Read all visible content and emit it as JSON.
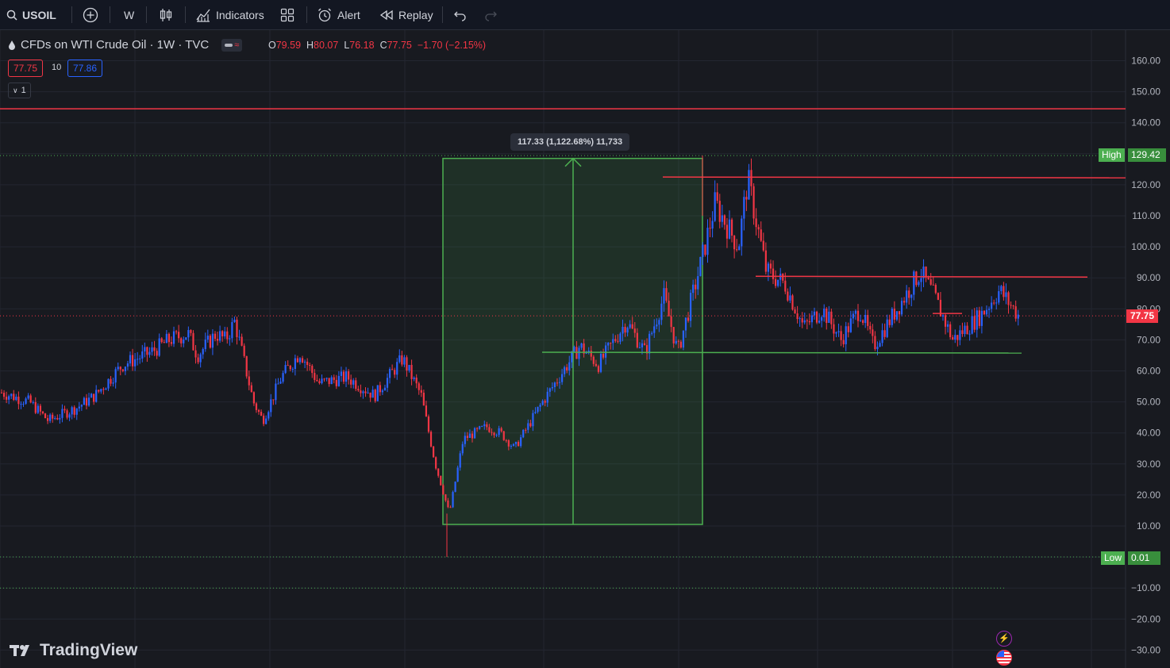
{
  "toolbar": {
    "symbol": "USOIL",
    "interval": "W",
    "indicators_label": "Indicators",
    "alert_label": "Alert",
    "replay_label": "Replay"
  },
  "legend": {
    "title": "CFDs on WTI Crude Oil · 1W · TVC",
    "open_key": "O",
    "open": "79.59",
    "high_key": "H",
    "high": "80.07",
    "low_key": "L",
    "low": "76.18",
    "close_key": "C",
    "close": "77.75",
    "change": "−1.70 (−2.15%)",
    "sell_price": "77.75",
    "spread": "10",
    "buy_price": "77.86",
    "collapse_count": "1"
  },
  "measure": {
    "label": "117.33 (1,122.68%) 11,733"
  },
  "price_axis": {
    "ticks": [
      "160.00",
      "150.00",
      "140.00",
      "120.00",
      "110.00",
      "100.00",
      "90.00",
      "80.00",
      "70.00",
      "60.00",
      "50.00",
      "40.00",
      "30.00",
      "20.00",
      "10.00",
      "−10.00",
      "−20.00",
      "−30.00"
    ],
    "current_price": "77.75",
    "high_label": "High",
    "high_value": "129.42",
    "low_label": "Low",
    "low_value": "0.01"
  },
  "brand": {
    "logo_text": "TradingView"
  },
  "colors": {
    "up": "#2962ff",
    "down": "#f23645",
    "level_red": "#f23645",
    "level_green": "#4caf50",
    "background": "#181a20"
  },
  "chart_data": {
    "type": "candlestick",
    "symbol": "USOIL",
    "interval": "1W",
    "ylim": [
      -30,
      165
    ],
    "close_path": [
      {
        "t": 0,
        "p": 53
      },
      {
        "t": 0.03,
        "p": 50
      },
      {
        "t": 0.05,
        "p": 44
      },
      {
        "t": 0.08,
        "p": 48
      },
      {
        "t": 0.1,
        "p": 52
      },
      {
        "t": 0.13,
        "p": 62
      },
      {
        "t": 0.16,
        "p": 66
      },
      {
        "t": 0.18,
        "p": 70
      },
      {
        "t": 0.2,
        "p": 72
      },
      {
        "t": 0.21,
        "p": 65
      },
      {
        "t": 0.23,
        "p": 72
      },
      {
        "t": 0.24,
        "p": 70
      },
      {
        "t": 0.25,
        "p": 76
      },
      {
        "t": 0.27,
        "p": 50
      },
      {
        "t": 0.28,
        "p": 44
      },
      {
        "t": 0.3,
        "p": 58
      },
      {
        "t": 0.32,
        "p": 66
      },
      {
        "t": 0.34,
        "p": 56
      },
      {
        "t": 0.37,
        "p": 58
      },
      {
        "t": 0.4,
        "p": 52
      },
      {
        "t": 0.43,
        "p": 64
      },
      {
        "t": 0.45,
        "p": 52
      },
      {
        "t": 0.465,
        "p": 30
      },
      {
        "t": 0.48,
        "p": 14
      },
      {
        "t": 0.495,
        "p": 38
      },
      {
        "t": 0.52,
        "p": 42
      },
      {
        "t": 0.535,
        "p": 40
      },
      {
        "t": 0.55,
        "p": 35
      },
      {
        "t": 0.58,
        "p": 50
      },
      {
        "t": 0.62,
        "p": 68
      },
      {
        "t": 0.64,
        "p": 62
      },
      {
        "t": 0.67,
        "p": 76
      },
      {
        "t": 0.69,
        "p": 66
      },
      {
        "t": 0.71,
        "p": 84
      },
      {
        "t": 0.725,
        "p": 66
      },
      {
        "t": 0.75,
        "p": 95
      },
      {
        "t": 0.765,
        "p": 114
      },
      {
        "t": 0.79,
        "p": 100
      },
      {
        "t": 0.8,
        "p": 122
      },
      {
        "t": 0.82,
        "p": 92
      },
      {
        "t": 0.84,
        "p": 88
      },
      {
        "t": 0.86,
        "p": 74
      },
      {
        "t": 0.88,
        "p": 80
      },
      {
        "t": 0.9,
        "p": 70
      },
      {
        "t": 0.92,
        "p": 80
      },
      {
        "t": 0.935,
        "p": 68
      },
      {
        "t": 0.96,
        "p": 80
      },
      {
        "t": 0.985,
        "p": 92
      },
      {
        "t": 1.0,
        "p": 84
      },
      {
        "t": 1.02,
        "p": 70
      },
      {
        "t": 1.05,
        "p": 78
      },
      {
        "t": 1.07,
        "p": 86
      },
      {
        "t": 1.09,
        "p": 78
      }
    ],
    "horizontal_levels": [
      {
        "price": 144.5,
        "color": "red",
        "extent": "full"
      },
      {
        "price": 122.5,
        "color": "red",
        "extent": "from 2022 high"
      },
      {
        "price": 90.5,
        "color": "red",
        "extent": "from 2022 high"
      },
      {
        "price": 66.0,
        "color": "green",
        "extent": "from 2021"
      }
    ],
    "measure_tool": {
      "from_price": 10.5,
      "to_price": 128.5,
      "change": 117.33,
      "change_pct": 1122.68,
      "ticks": 11733
    },
    "marked_high": 129.42,
    "marked_low": 0.01,
    "last_close": 77.75
  }
}
